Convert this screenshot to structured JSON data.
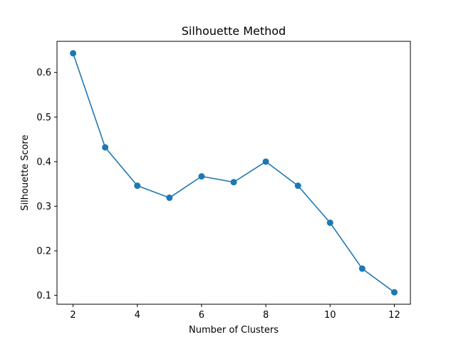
{
  "chart_data": {
    "type": "line",
    "title": "Silhouette Method",
    "xlabel": "Number of Clusters",
    "ylabel": "Silhouette Score",
    "x": [
      2,
      3,
      4,
      5,
      6,
      7,
      8,
      9,
      10,
      11,
      12
    ],
    "series": [
      {
        "values": [
          0.643,
          0.432,
          0.346,
          0.319,
          0.367,
          0.354,
          0.4,
          0.346,
          0.263,
          0.16,
          0.107
        ],
        "color": "#1f77b4",
        "marker": "circle"
      }
    ],
    "xticks": [
      2,
      4,
      6,
      8,
      10,
      12
    ],
    "yticks": [
      0.1,
      0.2,
      0.3,
      0.4,
      0.5,
      0.6
    ],
    "xlim": [
      1.5,
      12.5
    ],
    "ylim": [
      0.0802,
      0.6698
    ],
    "grid": false,
    "legend": false
  }
}
